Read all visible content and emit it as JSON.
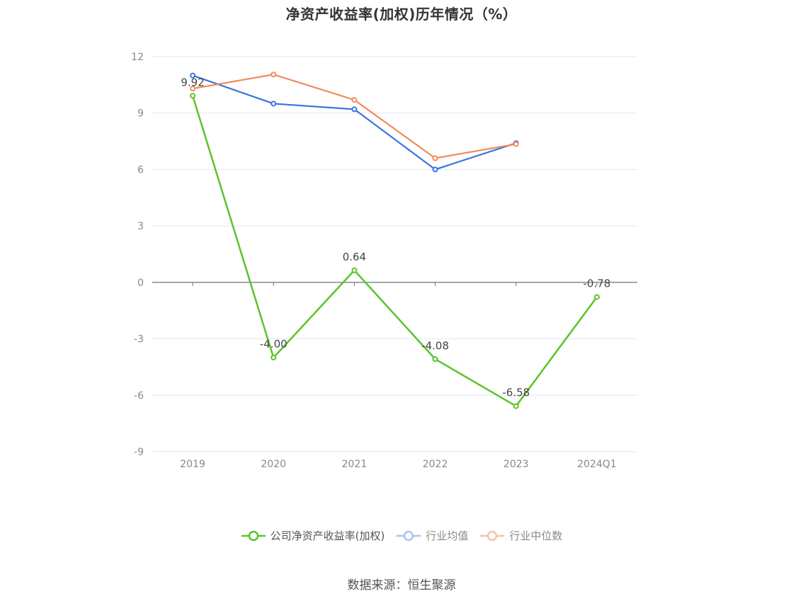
{
  "title": "净资产收益率(加权)历年情况（%）",
  "source": "数据来源：恒生聚源",
  "chart_data": {
    "type": "line",
    "title": "净资产收益率(加权)历年情况（%）",
    "categories": [
      "2019",
      "2020",
      "2021",
      "2022",
      "2023",
      "2024Q1"
    ],
    "ylim": [
      -9,
      12
    ],
    "yticks": [
      12,
      9,
      6,
      3,
      0,
      -3,
      -6,
      -9
    ],
    "grid": true,
    "legend_position": "bottom",
    "series": [
      {
        "name": "公司净资产收益率(加权)",
        "color": "#5ac42b",
        "values": [
          9.92,
          -4.0,
          0.64,
          -4.08,
          -6.58,
          -0.78
        ],
        "data_labels": [
          "9.92",
          "-4.00",
          "0.64",
          "-4.08",
          "-6.58",
          "-0.78"
        ]
      },
      {
        "name": "行业均值",
        "color": "#3a74e0",
        "values": [
          11.0,
          9.5,
          9.2,
          6.0,
          7.4,
          null
        ]
      },
      {
        "name": "行业中位数",
        "color": "#f08a5d",
        "values": [
          10.3,
          11.05,
          9.7,
          6.6,
          7.35,
          null
        ]
      }
    ]
  },
  "legend": [
    {
      "label": "公司净资产收益率(加权)",
      "color": "#5ac42b",
      "active": true
    },
    {
      "label": "行业均值",
      "color": "#a8c4f2",
      "active": false
    },
    {
      "label": "行业中位数",
      "color": "#f7c2ad",
      "active": false
    }
  ]
}
